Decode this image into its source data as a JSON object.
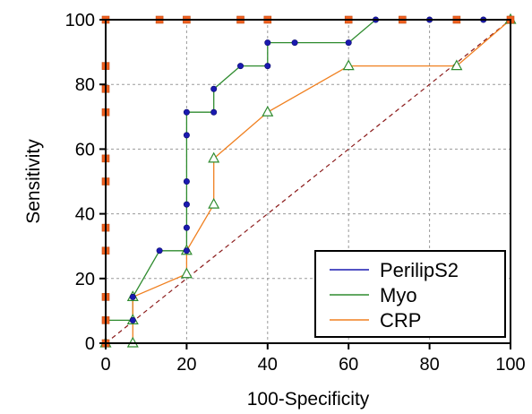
{
  "chart_data": {
    "type": "line",
    "xlabel": "100-Specificity",
    "ylabel": "Sensitivity",
    "xlim": [
      0,
      100
    ],
    "ylim": [
      0,
      100
    ],
    "x_ticks": [
      "0",
      "20",
      "40",
      "60",
      "80",
      "100"
    ],
    "y_ticks": [
      "0",
      "20",
      "40",
      "60",
      "80",
      "100"
    ],
    "grid": true,
    "legend_position": "bottom-right",
    "reference_line": {
      "from": [
        0,
        0
      ],
      "to": [
        100,
        100
      ],
      "color": "#8B1A1A",
      "style": "dashed"
    },
    "series": [
      {
        "name": "PerilipS2",
        "line_color": "#1A1AB0",
        "marker_color": "#F06020",
        "marker": "square",
        "points": [
          [
            0,
            0
          ],
          [
            0,
            7.1
          ],
          [
            0,
            14.3
          ],
          [
            0,
            28.6
          ],
          [
            0,
            35.7
          ],
          [
            0,
            50
          ],
          [
            0,
            57.1
          ],
          [
            0,
            71.4
          ],
          [
            0,
            78.6
          ],
          [
            0,
            85.7
          ],
          [
            0,
            100
          ],
          [
            13.3,
            100
          ],
          [
            20,
            100
          ],
          [
            33.3,
            100
          ],
          [
            40,
            100
          ],
          [
            60,
            100
          ],
          [
            73.3,
            100
          ],
          [
            86.7,
            100
          ],
          [
            100,
            100
          ]
        ]
      },
      {
        "name": "Myo",
        "line_color": "#2E8B2E",
        "marker_color": "#1A1AB0",
        "marker": "circle",
        "points": [
          [
            0,
            0
          ],
          [
            0,
            7.1
          ],
          [
            6.7,
            7.1
          ],
          [
            6.7,
            14.3
          ],
          [
            13.3,
            28.6
          ],
          [
            20,
            28.6
          ],
          [
            20,
            35.7
          ],
          [
            20,
            42.9
          ],
          [
            20,
            50
          ],
          [
            20,
            64.3
          ],
          [
            20,
            71.4
          ],
          [
            26.7,
            71.4
          ],
          [
            26.7,
            78.6
          ],
          [
            33.3,
            85.7
          ],
          [
            40,
            85.7
          ],
          [
            40,
            92.9
          ],
          [
            46.7,
            92.9
          ],
          [
            60,
            92.9
          ],
          [
            66.7,
            100
          ],
          [
            80,
            100
          ],
          [
            93.3,
            100
          ],
          [
            100,
            100
          ]
        ]
      },
      {
        "name": "CRP",
        "line_color": "#F08020",
        "marker_color": "#2E8B2E",
        "marker": "triangle",
        "points": [
          [
            0,
            0
          ],
          [
            6.7,
            0
          ],
          [
            6.7,
            7.1
          ],
          [
            6.7,
            14.3
          ],
          [
            20,
            21.4
          ],
          [
            20,
            28.6
          ],
          [
            26.7,
            42.9
          ],
          [
            26.7,
            57.1
          ],
          [
            40,
            71.4
          ],
          [
            60,
            85.7
          ],
          [
            86.7,
            85.7
          ],
          [
            100,
            100
          ]
        ]
      }
    ]
  }
}
